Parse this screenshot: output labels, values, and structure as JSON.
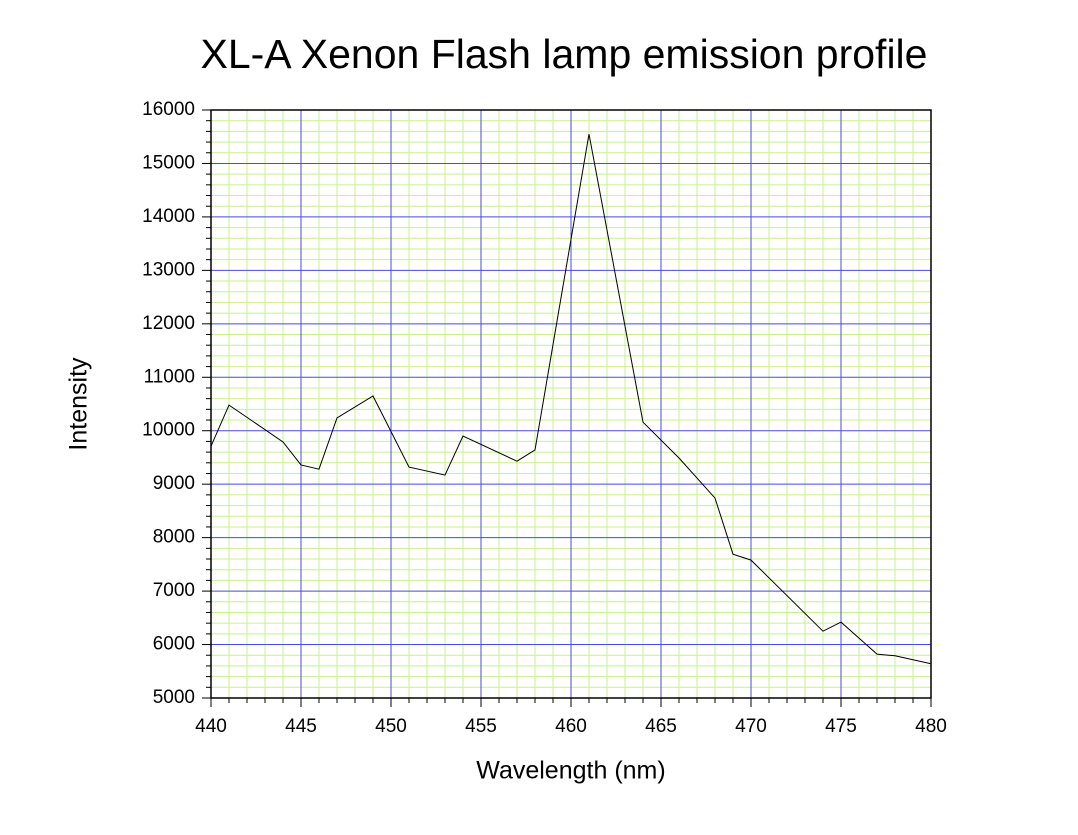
{
  "chart_data": {
    "type": "line",
    "title": "XL-A Xenon Flash lamp emission profile",
    "x_label": "Wavelength (nm)",
    "y_label": "Intensity",
    "x": [
      440,
      441,
      444,
      445,
      446,
      447,
      449,
      451,
      453,
      454,
      457,
      458,
      461,
      464,
      466,
      468,
      469,
      470,
      474,
      475,
      477,
      478,
      480
    ],
    "values": [
      9710,
      10480,
      9790,
      9360,
      9280,
      10240,
      10650,
      9320,
      9170,
      9900,
      9430,
      9640,
      15550,
      10160,
      9490,
      8740,
      7690,
      7580,
      6250,
      6420,
      5820,
      5790,
      5640
    ],
    "color": "#000000",
    "xlim": [
      440,
      480
    ],
    "xticks": [
      440,
      445,
      450,
      455,
      460,
      465,
      470,
      475,
      480
    ],
    "ylim": [
      5000,
      16000
    ],
    "yticks": [
      5000,
      6000,
      7000,
      8000,
      9000,
      10000,
      11000,
      12000,
      13000,
      14000,
      15000,
      16000
    ],
    "grid": true,
    "grid_color": "#4a4ae0",
    "minor_grid_color": "#c8f08c"
  }
}
